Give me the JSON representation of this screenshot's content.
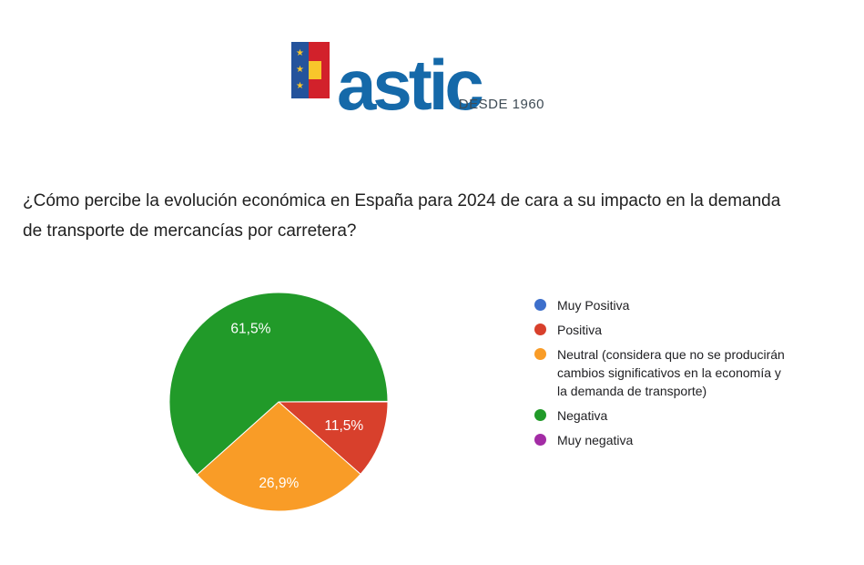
{
  "logo": {
    "brand": "astic",
    "tagline": "DESDE 1960",
    "brand_color": "#1569A9",
    "tagline_color": "#3E4B55",
    "flag": {
      "eu_blue": "#24539C",
      "star_glyph": "★",
      "star_count": 3,
      "star_yellow": "#F8C62B",
      "red": "#D2212B",
      "band_yellow": "#F8C62B"
    }
  },
  "question": {
    "full": "¿Cómo percibe la evolución económica en España para 2024 de cara a su impacto en la demanda de transporte de mercancías por carretera?",
    "lines": [
      "¿Cómo percibe la evolución económica en España para 2024 de cara a su impacto en la demanda",
      "de transporte de mercancías por carretera?"
    ]
  },
  "chart_data": {
    "type": "pie",
    "title": "¿Cómo percibe la evolución económica en España para 2024 de cara a su impacto en la demanda de transporte de mercancías por carretera?",
    "legend_position": "right",
    "start_angle_deg": 0,
    "direction": "clockwise",
    "slice_border_color": "#ffffff",
    "label_color": "#ffffff",
    "slices": [
      {
        "label": "Muy Positiva",
        "value": 0,
        "pct_label": "",
        "color": "#3D6FCB",
        "legend_lines": [
          "Muy Positiva"
        ]
      },
      {
        "label": "Positiva",
        "value": 11.5,
        "pct_label": "11,5%",
        "color": "#D8402C",
        "legend_lines": [
          "Positiva"
        ]
      },
      {
        "label": "Neutral (considera que no se producirán cambios significativos en la economía y la demanda de transporte)",
        "value": 26.9,
        "pct_label": "26,9%",
        "color": "#F99C27",
        "legend_lines": [
          "Neutral (considera que no se producirán",
          "cambios significativos en la economía y",
          "la demanda de transporte)"
        ]
      },
      {
        "label": "Negativa",
        "value": 61.5,
        "pct_label": "61,5%",
        "color": "#219A29",
        "legend_lines": [
          "Negativa"
        ]
      },
      {
        "label": "Muy negativa",
        "value": 0,
        "pct_label": "",
        "color": "#A32CA5",
        "legend_lines": [
          "Muy negativa"
        ]
      }
    ]
  }
}
